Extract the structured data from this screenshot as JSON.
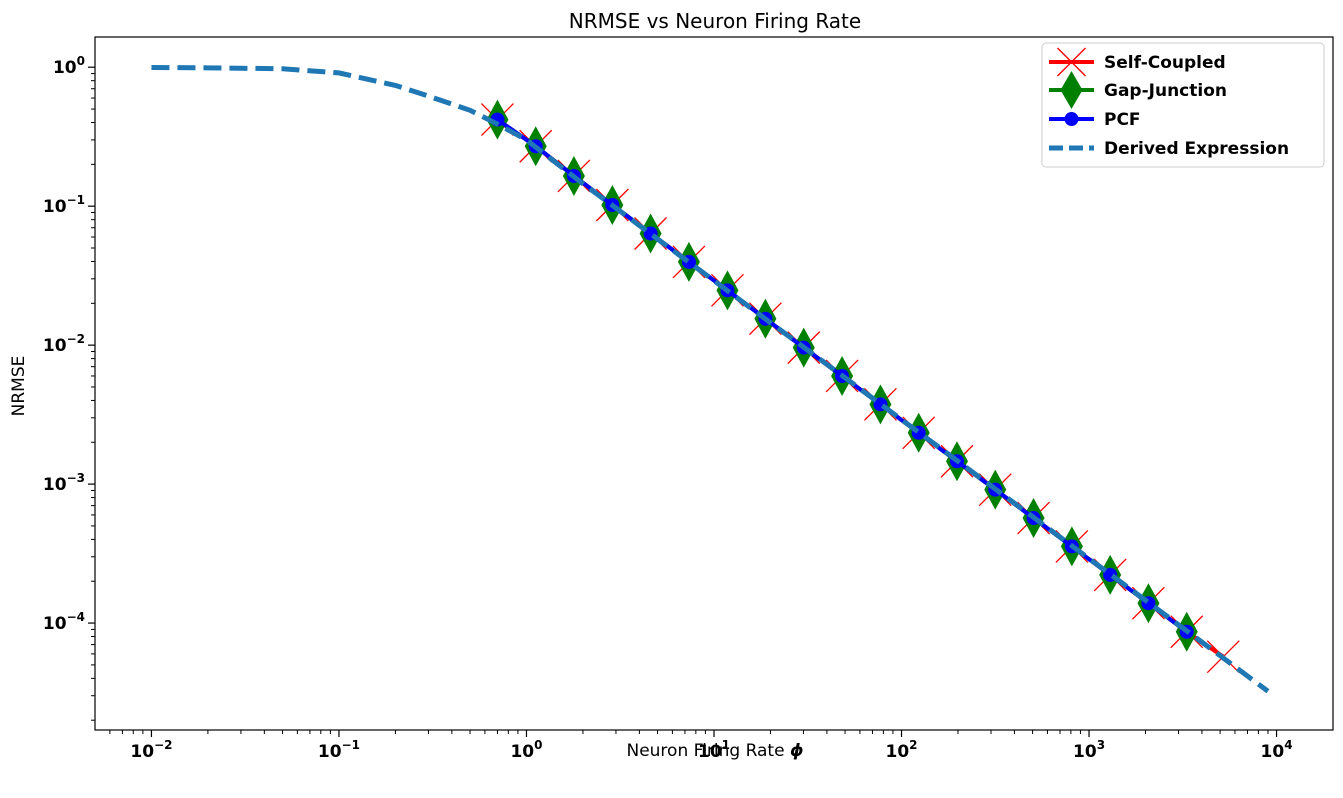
{
  "chart_data": {
    "type": "line",
    "title": "NRMSE vs Neuron Firing Rate",
    "xlabel": "Neuron Firing Rate",
    "xlabel_symbol": "ϕ",
    "ylabel": "NRMSE",
    "xscale": "log",
    "yscale": "log",
    "xlim": [
      0.005,
      20000
    ],
    "ylim": [
      1.7e-05,
      1.65
    ],
    "grid": false,
    "legend_position": "top-right",
    "x_ticks": [
      {
        "base": "10",
        "exp": "−2",
        "value": 0.01
      },
      {
        "base": "10",
        "exp": "−1",
        "value": 0.1
      },
      {
        "base": "10",
        "exp": "0",
        "value": 1
      },
      {
        "base": "10",
        "exp": "1",
        "value": 10
      },
      {
        "base": "10",
        "exp": "2",
        "value": 100
      },
      {
        "base": "10",
        "exp": "3",
        "value": 1000
      },
      {
        "base": "10",
        "exp": "4",
        "value": 10000
      }
    ],
    "y_ticks": [
      {
        "base": "10",
        "exp": "0",
        "value": 1
      },
      {
        "base": "10",
        "exp": "−1",
        "value": 0.1
      },
      {
        "base": "10",
        "exp": "−2",
        "value": 0.01
      },
      {
        "base": "10",
        "exp": "−3",
        "value": 0.001
      },
      {
        "base": "10",
        "exp": "−4",
        "value": 0.0001
      }
    ],
    "series": [
      {
        "name": "Self-Coupled",
        "color": "#ff0000",
        "marker": "x",
        "x": [
          0.7,
          1.12,
          1.79,
          2.87,
          4.59,
          7.35,
          11.8,
          18.8,
          30.1,
          48.2,
          77.2,
          123.5,
          197.6,
          316.2,
          506,
          810,
          1296,
          2074,
          3319,
          5200
        ],
        "y": [
          0.42,
          0.27,
          0.165,
          0.102,
          0.0636,
          0.0397,
          0.0248,
          0.0155,
          0.0096,
          0.006,
          0.00375,
          0.00234,
          0.00146,
          0.000912,
          0.00057,
          0.000356,
          0.000222,
          0.000139,
          8.66e-05,
          5.73e-05
        ]
      },
      {
        "name": "Gap-Junction",
        "color": "#008000",
        "marker": "diamond",
        "x": [
          0.7,
          1.12,
          1.79,
          2.87,
          4.59,
          7.35,
          11.8,
          18.8,
          30.1,
          48.2,
          77.2,
          123.5,
          197.6,
          316.2,
          506,
          810,
          1296,
          2074,
          3319
        ],
        "y": [
          0.42,
          0.27,
          0.165,
          0.102,
          0.0636,
          0.0397,
          0.0248,
          0.0155,
          0.0096,
          0.006,
          0.00375,
          0.00234,
          0.00146,
          0.000912,
          0.00057,
          0.000356,
          0.000222,
          0.000139,
          8.66e-05
        ]
      },
      {
        "name": "PCF",
        "color": "#0000ff",
        "marker": "circle",
        "x": [
          0.7,
          1.12,
          1.79,
          2.87,
          4.59,
          7.35,
          11.8,
          18.8,
          30.1,
          48.2,
          77.2,
          123.5,
          197.6,
          316.2,
          506,
          810,
          1296,
          2074,
          3319
        ],
        "y": [
          0.42,
          0.27,
          0.165,
          0.102,
          0.0636,
          0.0397,
          0.0248,
          0.0155,
          0.0096,
          0.006,
          0.00375,
          0.00234,
          0.00146,
          0.000912,
          0.00057,
          0.000356,
          0.000222,
          0.000139,
          8.66e-05
        ]
      },
      {
        "name": "Derived Expression",
        "color": "#1f77b4",
        "marker": "none",
        "style": "dashed",
        "x": [
          0.01,
          0.02,
          0.05,
          0.1,
          0.2,
          0.3,
          0.5,
          0.7,
          1,
          2,
          3,
          5,
          10,
          20,
          50,
          100,
          200,
          500,
          1000,
          2000,
          5000,
          9000
        ],
        "y": [
          0.995,
          0.99,
          0.975,
          0.91,
          0.74,
          0.62,
          0.49,
          0.39,
          0.3,
          0.145,
          0.097,
          0.058,
          0.0291,
          0.0145,
          0.00583,
          0.00291,
          0.00146,
          0.000583,
          0.000291,
          0.000146,
          5.83e-05,
          3.23e-05
        ]
      }
    ]
  }
}
